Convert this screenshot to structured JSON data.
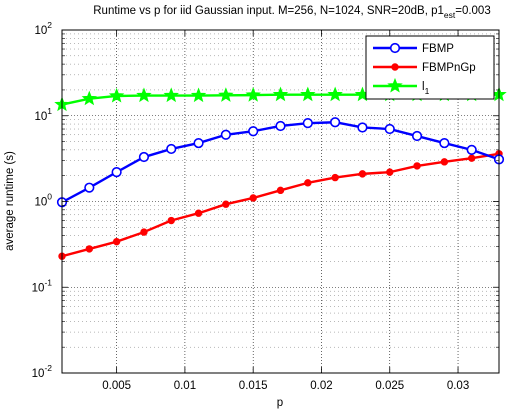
{
  "chart_data": {
    "type": "line",
    "title_main": "Runtime vs p for iid Gaussian input. M=256, N=1024, SNR=20dB, p1",
    "title_sub": "est",
    "title_tail": "=0.003",
    "xlabel": "p",
    "ylabel": "average runtime (s)",
    "x_scale": "linear",
    "y_scale": "log",
    "xlim": [
      0.001,
      0.033
    ],
    "ylim": [
      0.01,
      100
    ],
    "x_ticks": [
      0.005,
      0.01,
      0.015,
      0.02,
      0.025,
      0.03
    ],
    "x_tick_labels": [
      "0.005",
      "0.01",
      "0.015",
      "0.02",
      "0.025",
      "0.03"
    ],
    "y_ticks": [
      {
        "value": 0.01,
        "base": "10",
        "exp": "-2"
      },
      {
        "value": 0.1,
        "base": "10",
        "exp": "-1"
      },
      {
        "value": 1,
        "base": "10",
        "exp": "0"
      },
      {
        "value": 10,
        "base": "10",
        "exp": "1"
      },
      {
        "value": 100,
        "base": "10",
        "exp": "2"
      }
    ],
    "grid": true,
    "legend_position": "top-right",
    "x": [
      0.001,
      0.003,
      0.005,
      0.007,
      0.009,
      0.011,
      0.013,
      0.015,
      0.017,
      0.019,
      0.021,
      0.023,
      0.025,
      0.027,
      0.029,
      0.031,
      0.033
    ],
    "series": [
      {
        "name": "FBMP",
        "color": "#0000ff",
        "marker": "circle",
        "values": [
          0.98,
          1.45,
          2.2,
          3.3,
          4.1,
          4.8,
          6.0,
          6.6,
          7.6,
          8.2,
          8.4,
          7.3,
          7.0,
          5.8,
          4.8,
          4.0,
          3.1
        ]
      },
      {
        "name": "FBMPnGp",
        "color": "#ff0000",
        "marker": "dot",
        "values": [
          0.23,
          0.28,
          0.34,
          0.44,
          0.6,
          0.73,
          0.93,
          1.1,
          1.35,
          1.65,
          1.9,
          2.1,
          2.2,
          2.6,
          2.9,
          3.2,
          3.6
        ]
      },
      {
        "name": "l",
        "name_sub": "1",
        "color": "#00ff00",
        "marker": "star",
        "values": [
          13.5,
          15.8,
          17.0,
          17.2,
          17.2,
          17.2,
          17.3,
          17.4,
          17.6,
          17.6,
          17.6,
          17.6,
          17.6,
          17.6,
          17.6,
          17.6,
          17.6
        ]
      }
    ]
  }
}
